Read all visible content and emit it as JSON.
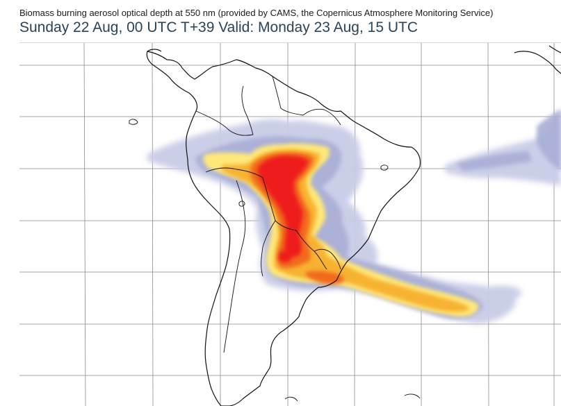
{
  "header": {
    "subtitle": "Biomass burning aerosol optical depth at 550 nm (provided by CAMS, the Copernicus Atmosphere Monitoring Service)",
    "title": "Sunday 22 Aug, 00 UTC T+39 Valid: Monday 23 Aug, 15 UTC"
  },
  "map": {
    "region": "South America",
    "layer": "aerosol-optical-depth",
    "colors": {
      "low": "#c9cce6",
      "low_mid": "#a8aed6",
      "mid": "#ffe87a",
      "mid_high": "#f7b233",
      "high": "#f26a1b",
      "max": "#ee1c1c",
      "coast": "#111111",
      "grid": "#8a8a8a"
    }
  }
}
